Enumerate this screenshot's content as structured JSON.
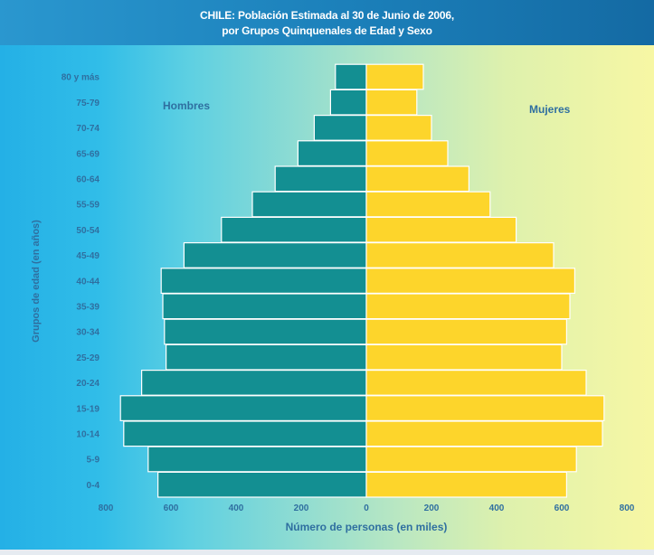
{
  "header": {
    "line1": "CHILE: Población Estimada al 30 de Junio de 2006,",
    "line2": "por Grupos Quinquenales de Edad y Sexo"
  },
  "colors": {
    "male": "#138f92",
    "female": "#fdd52b",
    "label": "#2f6fa0"
  },
  "chart_data": {
    "type": "bar",
    "orientation": "horizontal-population-pyramid",
    "title": "CHILE: Población Estimada al 30 de Junio de 2006, por Grupos Quinquenales de Edad y Sexo",
    "xlabel": "Número de personas (en miles)",
    "ylabel": "Grupos de edad (en años)",
    "categories": [
      "0-4",
      "5-9",
      "10-14",
      "15-19",
      "20-24",
      "25-29",
      "30-34",
      "35-39",
      "40-44",
      "45-49",
      "50-54",
      "55-59",
      "60-64",
      "65-69",
      "70-74",
      "75-79",
      "80 y más"
    ],
    "series": [
      {
        "name": "Hombres",
        "values": [
          640,
          670,
          745,
          755,
          690,
          615,
          620,
          625,
          630,
          560,
          445,
          350,
          280,
          210,
          160,
          110,
          95
        ]
      },
      {
        "name": "Mujeres",
        "values": [
          615,
          645,
          725,
          730,
          675,
          600,
          615,
          625,
          640,
          575,
          460,
          380,
          315,
          250,
          200,
          155,
          175
        ]
      }
    ],
    "xlim": [
      -800,
      800
    ],
    "xticks": [
      {
        "value": -800,
        "label": "800"
      },
      {
        "value": -600,
        "label": "600"
      },
      {
        "value": -400,
        "label": "400"
      },
      {
        "value": -200,
        "label": "200"
      },
      {
        "value": 0,
        "label": "0"
      },
      {
        "value": 200,
        "label": "200"
      },
      {
        "value": 400,
        "label": "400"
      },
      {
        "value": 600,
        "label": "600"
      },
      {
        "value": 800,
        "label": "800"
      }
    ],
    "grid": false,
    "legend": "inline-labels-top"
  }
}
